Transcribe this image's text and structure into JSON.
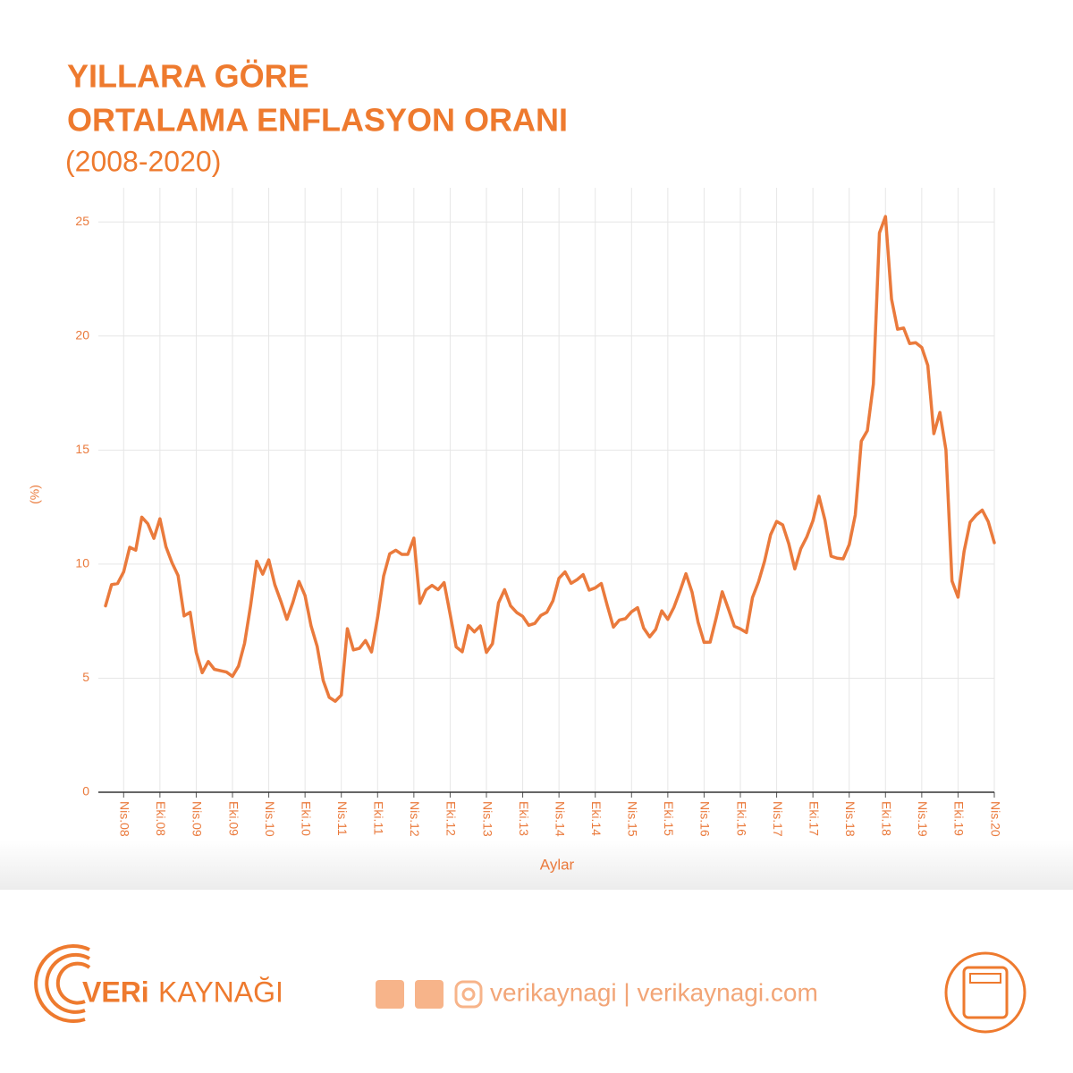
{
  "chart_data": {
    "type": "line",
    "title": "YILLARA GÖRE",
    "title_line2": "ORTALAMA ENFLASYON ORANI",
    "subtitle": "(2008-2020)",
    "y_label": "(%)",
    "x_label": "Aylar",
    "color": "#ea7a3c",
    "grid": true,
    "ylim": [
      0,
      26.5
    ],
    "yticks": [
      0,
      5,
      10,
      15,
      20,
      25
    ],
    "categories": [
      null,
      null,
      null,
      "Nis.08",
      null,
      null,
      null,
      null,
      null,
      "Eki.08",
      null,
      null,
      null,
      null,
      null,
      "Nis.09",
      null,
      null,
      null,
      null,
      null,
      "Eki.09",
      null,
      null,
      null,
      null,
      null,
      "Nis.10",
      null,
      null,
      null,
      null,
      null,
      "Eki.10",
      null,
      null,
      null,
      null,
      null,
      "Nis.11",
      null,
      null,
      null,
      null,
      null,
      "Eki.11",
      null,
      null,
      null,
      null,
      null,
      "Nis.12",
      null,
      null,
      null,
      null,
      null,
      "Eki.12",
      null,
      null,
      null,
      null,
      null,
      "Nis.13",
      null,
      null,
      null,
      null,
      null,
      "Eki.13",
      null,
      null,
      null,
      null,
      null,
      "Nis.14",
      null,
      null,
      null,
      null,
      null,
      "Eki.14",
      null,
      null,
      null,
      null,
      null,
      "Nis.15",
      null,
      null,
      null,
      null,
      null,
      "Eki.15",
      null,
      null,
      null,
      null,
      null,
      "Nis.16",
      null,
      null,
      null,
      null,
      null,
      "Eki.16",
      null,
      null,
      null,
      null,
      null,
      "Nis.17",
      null,
      null,
      null,
      null,
      null,
      "Eki.17",
      null,
      null,
      null,
      null,
      null,
      "Nis.18",
      null,
      null,
      null,
      null,
      null,
      "Eki.18",
      null,
      null,
      null,
      null,
      null,
      "Nis.19",
      null,
      null,
      null,
      null,
      null,
      "Eki.19",
      null,
      null,
      null,
      null,
      null,
      "Nis.20"
    ],
    "values": [
      8.17,
      9.1,
      9.15,
      9.66,
      10.74,
      10.61,
      12.06,
      11.77,
      11.13,
      11.99,
      10.76,
      10.06,
      9.5,
      7.73,
      7.89,
      6.13,
      5.24,
      5.73,
      5.39,
      5.33,
      5.27,
      5.08,
      5.53,
      6.53,
      8.19,
      10.13,
      9.56,
      10.19,
      9.1,
      8.37,
      7.58,
      8.33,
      9.24,
      8.62,
      7.29,
      6.4,
      4.9,
      4.16,
      3.99,
      4.26,
      7.17,
      6.24,
      6.31,
      6.65,
      6.15,
      7.66,
      9.48,
      10.45,
      10.61,
      10.43,
      10.43,
      11.14,
      8.28,
      8.87,
      9.07,
      8.88,
      9.19,
      7.8,
      6.37,
      6.16,
      7.31,
      7.03,
      7.29,
      6.13,
      6.51,
      8.3,
      8.88,
      8.17,
      7.88,
      7.71,
      7.32,
      7.4,
      7.75,
      7.89,
      8.39,
      9.38,
      9.66,
      9.16,
      9.32,
      9.54,
      8.86,
      8.96,
      9.15,
      8.17,
      7.24,
      7.55,
      7.61,
      7.91,
      8.09,
      7.2,
      6.81,
      7.14,
      7.95,
      7.58,
      8.1,
      8.81,
      9.58,
      8.78,
      7.46,
      6.57,
      6.58,
      7.64,
      8.79,
      8.05,
      7.28,
      7.16,
      7.0,
      8.53,
      9.22,
      10.13,
      11.29,
      11.87,
      11.72,
      10.9,
      9.79,
      10.68,
      11.2,
      11.9,
      12.98,
      11.92,
      10.35,
      10.26,
      10.23,
      10.85,
      12.15,
      15.39,
      15.85,
      17.9,
      24.52,
      25.24,
      21.62,
      20.3,
      20.35,
      19.67,
      19.71,
      19.5,
      18.71,
      15.72,
      16.65,
      15.01,
      9.26,
      8.55,
      10.56,
      11.84,
      12.15,
      12.37,
      11.86,
      10.94
    ]
  },
  "footer": {
    "brand_bold": "VERi",
    "brand_light": "KAYNAĞI",
    "social": "verikaynagi | verikaynagi.com"
  }
}
